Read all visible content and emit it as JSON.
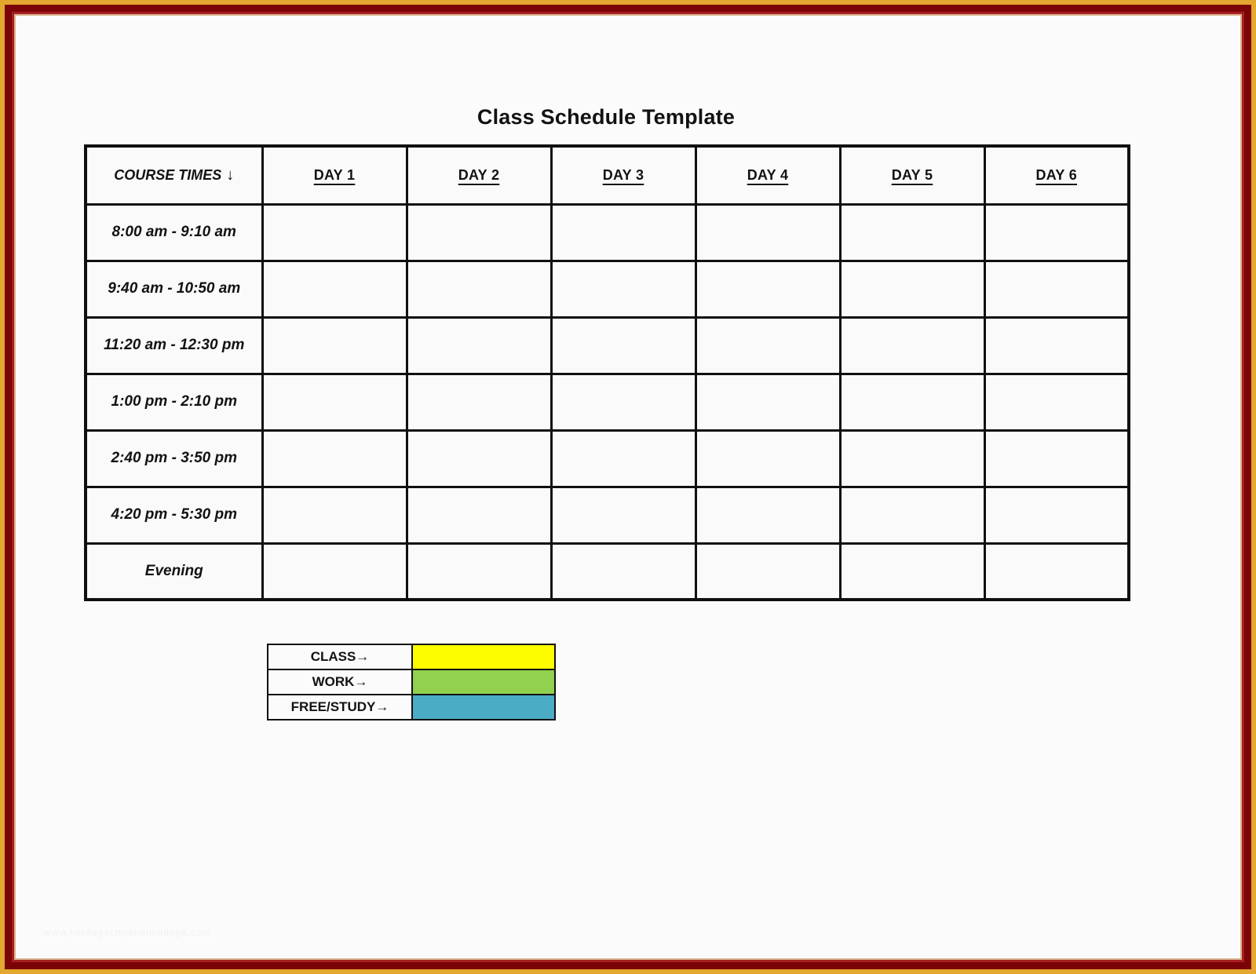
{
  "page": {
    "title": "Class Schedule Template",
    "watermark": "www.heritagechristiancollege.com"
  },
  "colors": {
    "frame_gold": "#E2A72E",
    "frame_maroon": "#7B0409",
    "frame_red": "#A81F1F",
    "frame_tan": "#D9B48E",
    "table_line": "#101010",
    "class_swatch": "#FDFD00",
    "work_swatch": "#92D050",
    "free_study_swatch": "#4BACC6"
  },
  "schedule_table": {
    "header": [
      "COURSE TIMES",
      "DAY 1",
      "DAY 2",
      "DAY 3",
      "DAY 4",
      "DAY 5",
      "DAY 6"
    ],
    "header_arrow": "↓",
    "day_columns": 6,
    "time_slots": [
      "8:00 am - 9:10 am",
      "9:40 am - 10:50 am",
      "11:20 am - 12:30 pm",
      "1:00 pm - 2:10 pm",
      "2:40 pm - 3:50 pm",
      "4:20 pm - 5:30 pm",
      "Evening"
    ]
  },
  "legend": {
    "items": [
      {
        "name": "class",
        "label": "CLASS→",
        "color": "#FDFD00"
      },
      {
        "name": "work",
        "label": "WORK→",
        "color": "#92D050"
      },
      {
        "name": "free-study",
        "label": "FREE/STUDY→",
        "color": "#4BACC6"
      }
    ]
  }
}
